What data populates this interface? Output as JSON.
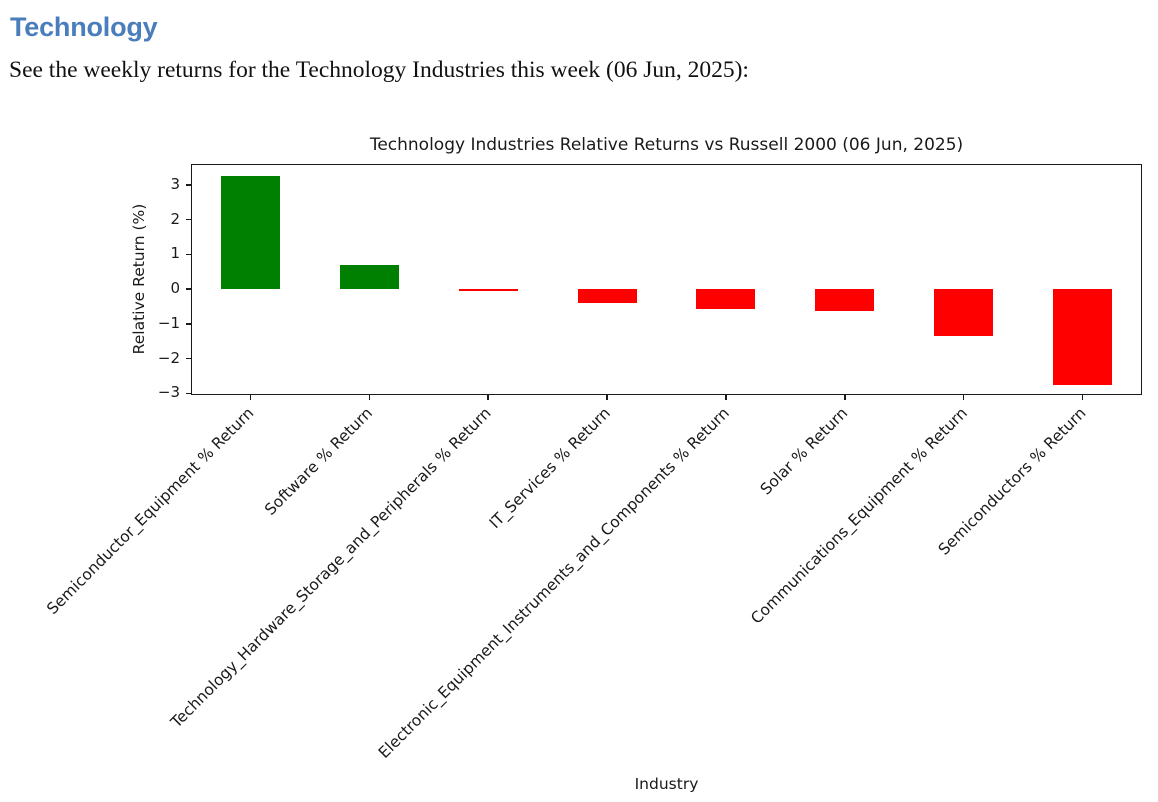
{
  "page": {
    "heading": "Technology",
    "intro": "See the weekly returns for the Technology Industries this week (06 Jun, 2025):"
  },
  "colors": {
    "heading": "#4a7dbb",
    "axis_text": "#1a1a1a"
  },
  "chart_data": {
    "type": "bar",
    "title": "Technology Industries Relative Returns vs Russell 2000 (06 Jun, 2025)",
    "xlabel": "Industry",
    "ylabel": "Relative Return (%)",
    "categories": [
      "Semiconductor_Equipment % Return",
      "Software % Return",
      "Technology_Hardware_Storage_and_Peripherals % Return",
      "IT_Services % Return",
      "Electronic_Equipment_Instruments_and_Components % Return",
      "Solar % Return",
      "Communications_Equipment % Return",
      "Semiconductors % Return"
    ],
    "values": [
      3.27,
      0.7,
      -0.07,
      -0.41,
      -0.56,
      -0.62,
      -1.34,
      -2.75
    ],
    "positive_color": "#008000",
    "negative_color": "#ff0000",
    "yticks": [
      3,
      2,
      1,
      0,
      -1,
      -2,
      -3
    ],
    "ylim": [
      -3.05,
      3.6
    ],
    "grid": false,
    "legend": null,
    "bar_width_frac": 0.5,
    "xtick_rotation_deg": 45
  }
}
